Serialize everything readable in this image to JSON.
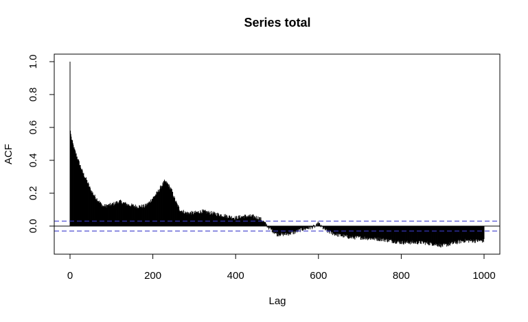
{
  "chart_data": {
    "type": "bar",
    "title": "Series  total",
    "xlabel": "Lag",
    "ylabel": "ACF",
    "xlim": [
      0,
      1000
    ],
    "ylim": [
      -0.15,
      1.0
    ],
    "x_ticks": [
      0,
      200,
      400,
      600,
      800,
      1000
    ],
    "x_tick_labels": [
      "0",
      "200",
      "400",
      "600",
      "800",
      "1000"
    ],
    "y_ticks": [
      0.0,
      0.2,
      0.4,
      0.6,
      0.8,
      1.0
    ],
    "y_tick_labels": [
      "0.0",
      "0.2",
      "0.4",
      "0.6",
      "0.8",
      "1.0"
    ],
    "confidence_band": 0.03,
    "grid": false,
    "legend": "none",
    "colors": {
      "bars": "#000000",
      "confidence": "#3a3acc",
      "frame": "#000000"
    },
    "acf_profile": {
      "lag_step": 1,
      "max_lag": 1000,
      "lags": [
        0,
        1,
        3,
        10,
        20,
        30,
        40,
        50,
        60,
        70,
        80,
        100,
        120,
        140,
        160,
        180,
        190,
        200,
        210,
        220,
        228,
        235,
        245,
        255,
        265,
        280,
        300,
        320,
        340,
        360,
        380,
        400,
        420,
        440,
        455,
        462,
        470,
        480,
        490,
        500,
        520,
        540,
        560,
        580,
        595,
        600,
        605,
        620,
        640,
        660,
        680,
        700,
        750,
        800,
        850,
        880,
        900,
        950,
        1000
      ],
      "values": [
        1.0,
        0.58,
        0.54,
        0.47,
        0.4,
        0.33,
        0.28,
        0.22,
        0.18,
        0.15,
        0.12,
        0.13,
        0.15,
        0.13,
        0.12,
        0.12,
        0.14,
        0.17,
        0.2,
        0.24,
        0.27,
        0.26,
        0.22,
        0.15,
        0.1,
        0.08,
        0.08,
        0.09,
        0.08,
        0.07,
        0.06,
        0.05,
        0.06,
        0.06,
        0.05,
        0.04,
        0.02,
        -0.01,
        -0.03,
        -0.05,
        -0.05,
        -0.04,
        -0.02,
        -0.01,
        0.0,
        0.02,
        0.0,
        -0.03,
        -0.05,
        -0.06,
        -0.07,
        -0.07,
        -0.08,
        -0.1,
        -0.1,
        -0.11,
        -0.12,
        -0.09,
        -0.09
      ]
    }
  }
}
